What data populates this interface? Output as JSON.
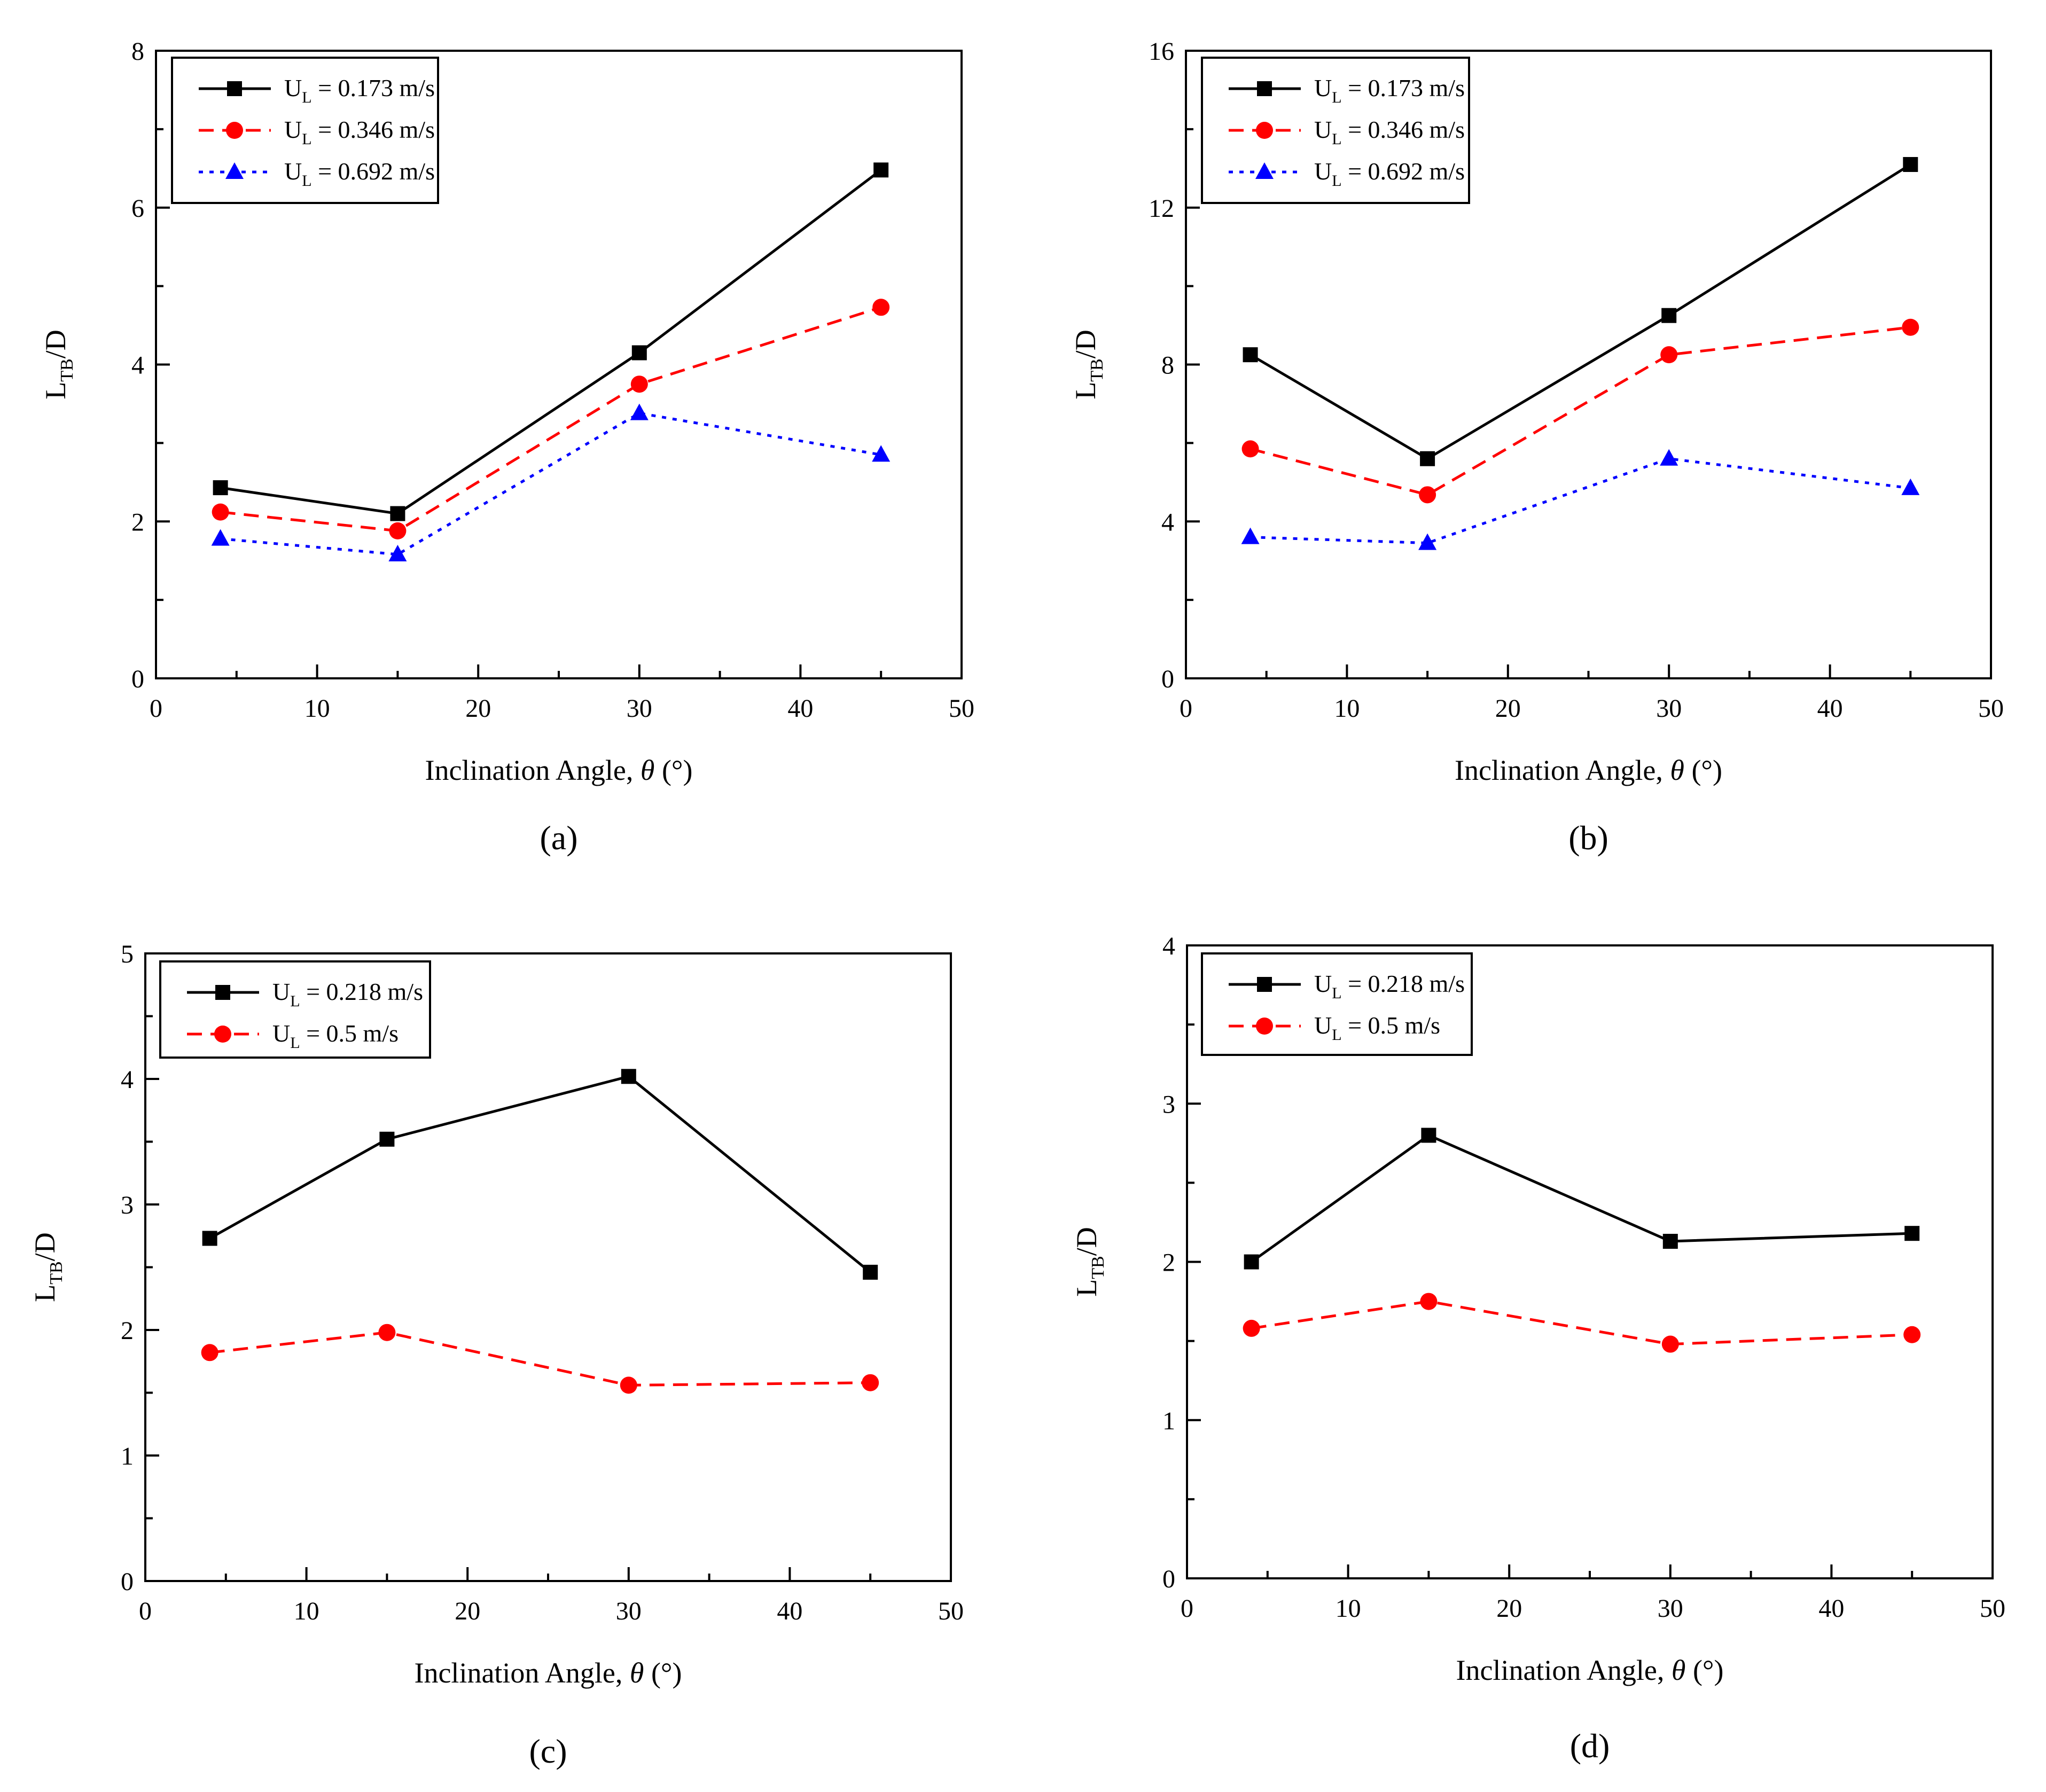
{
  "chart_data": [
    {
      "type": "line",
      "panel_label": "(a)",
      "xlabel": "Inclination Angle,",
      "xlabel_symbol": "θ",
      "xlabel_unit": "(°)",
      "ylabel": "L",
      "ylabel_sub": "TB",
      "ylabel_suffix": "/D",
      "xlim": [
        0,
        50
      ],
      "ylim": [
        0,
        8
      ],
      "xticks": [
        0,
        10,
        20,
        30,
        40,
        50
      ],
      "yticks": [
        0,
        2,
        4,
        6,
        8
      ],
      "x": [
        4,
        15,
        30,
        45
      ],
      "legend_position": "top-left",
      "series": [
        {
          "name": "U",
          "sub": "L",
          "value_text": "= 0.173 m/s",
          "values": [
            2.43,
            2.1,
            4.15,
            6.48
          ],
          "color": "#000000",
          "marker": "square",
          "dash": "solid"
        },
        {
          "name": "U",
          "sub": "L",
          "value_text": "= 0.346 m/s",
          "values": [
            2.12,
            1.88,
            3.75,
            4.73
          ],
          "color": "#ff0000",
          "marker": "circle",
          "dash": "dashed"
        },
        {
          "name": "U",
          "sub": "L",
          "value_text": "= 0.692 m/s",
          "values": [
            1.78,
            1.58,
            3.38,
            2.85
          ],
          "color": "#0000ff",
          "marker": "triangle",
          "dash": "dotted"
        }
      ]
    },
    {
      "type": "line",
      "panel_label": "(b)",
      "xlabel": "Inclination Angle,",
      "xlabel_symbol": "θ",
      "xlabel_unit": "(°)",
      "ylabel": "L",
      "ylabel_sub": "TB",
      "ylabel_suffix": "/D",
      "xlim": [
        0,
        50
      ],
      "ylim": [
        0,
        16
      ],
      "xticks": [
        0,
        10,
        20,
        30,
        40,
        50
      ],
      "yticks": [
        0,
        4,
        8,
        12,
        16
      ],
      "x": [
        4,
        15,
        30,
        45
      ],
      "legend_position": "top-left",
      "series": [
        {
          "name": "U",
          "sub": "L",
          "value_text": "= 0.173 m/s",
          "values": [
            8.25,
            5.6,
            9.25,
            13.1
          ],
          "color": "#000000",
          "marker": "square",
          "dash": "solid"
        },
        {
          "name": "U",
          "sub": "L",
          "value_text": "= 0.346 m/s",
          "values": [
            5.85,
            4.68,
            8.25,
            8.95
          ],
          "color": "#ff0000",
          "marker": "circle",
          "dash": "dashed"
        },
        {
          "name": "U",
          "sub": "L",
          "value_text": "= 0.692 m/s",
          "values": [
            3.6,
            3.45,
            5.6,
            4.85
          ],
          "color": "#0000ff",
          "marker": "triangle",
          "dash": "dotted"
        }
      ]
    },
    {
      "type": "line",
      "panel_label": "(c)",
      "xlabel": "Inclination Angle,",
      "xlabel_symbol": "θ",
      "xlabel_unit": "(°)",
      "ylabel": "L",
      "ylabel_sub": "TB",
      "ylabel_suffix": "/D",
      "xlim": [
        0,
        50
      ],
      "ylim": [
        0,
        5
      ],
      "xticks": [
        0,
        10,
        20,
        30,
        40,
        50
      ],
      "yticks": [
        0,
        1,
        2,
        3,
        4,
        5
      ],
      "x": [
        4,
        15,
        30,
        45
      ],
      "legend_position": "top-left",
      "series": [
        {
          "name": "U",
          "sub": "L",
          "value_text": "= 0.218 m/s",
          "values": [
            2.73,
            3.52,
            4.02,
            2.46
          ],
          "color": "#000000",
          "marker": "square",
          "dash": "solid"
        },
        {
          "name": "U",
          "sub": "L",
          "value_text": "= 0.5 m/s",
          "values": [
            1.82,
            1.98,
            1.56,
            1.58
          ],
          "color": "#ff0000",
          "marker": "circle",
          "dash": "dashed"
        }
      ]
    },
    {
      "type": "line",
      "panel_label": "(d)",
      "xlabel": "Inclination Angle,",
      "xlabel_symbol": "θ",
      "xlabel_unit": "(°)",
      "ylabel": "L",
      "ylabel_sub": "TB",
      "ylabel_suffix": "/D",
      "xlim": [
        0,
        50
      ],
      "ylim": [
        0,
        4
      ],
      "xticks": [
        0,
        10,
        20,
        30,
        40,
        50
      ],
      "yticks": [
        0,
        1,
        2,
        3,
        4
      ],
      "x": [
        4,
        15,
        30,
        45
      ],
      "legend_position": "top-left",
      "series": [
        {
          "name": "U",
          "sub": "L",
          "value_text": "= 0.218 m/s",
          "values": [
            2.0,
            2.8,
            2.13,
            2.18
          ],
          "color": "#000000",
          "marker": "square",
          "dash": "solid"
        },
        {
          "name": "U",
          "sub": "L",
          "value_text": "= 0.5 m/s",
          "values": [
            1.58,
            1.75,
            1.48,
            1.54
          ],
          "color": "#ff0000",
          "marker": "circle",
          "dash": "dashed"
        }
      ]
    }
  ]
}
